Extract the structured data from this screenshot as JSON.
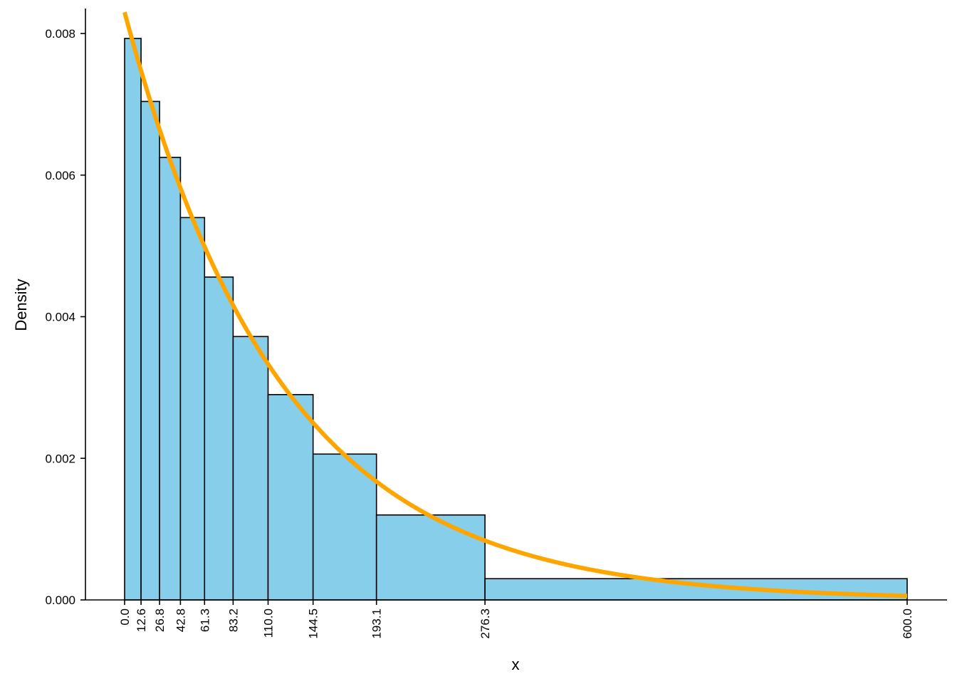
{
  "chart_data": {
    "type": "bar",
    "subtype": "histogram-with-density-curve",
    "xlabel": "x",
    "ylabel": "Density",
    "ylim": [
      0,
      0.0083
    ],
    "xlim": [
      0,
      600
    ],
    "grid": false,
    "bin_edges": [
      0.0,
      12.6,
      26.8,
      42.8,
      61.3,
      83.2,
      110.0,
      144.5,
      193.1,
      276.3,
      600.0
    ],
    "x_tick_labels": [
      "0.0",
      "12.6",
      "26.8",
      "42.8",
      "61.3",
      "83.2",
      "110.0",
      "144.5",
      "193.1",
      "276.3",
      "600.0"
    ],
    "y_ticks": [
      0,
      0.002,
      0.004,
      0.006,
      0.008
    ],
    "y_tick_labels": [
      "0.000",
      "0.002",
      "0.004",
      "0.006",
      "0.008"
    ],
    "values": [
      0.00793,
      0.00704,
      0.00625,
      0.0054,
      0.00456,
      0.00372,
      0.0029,
      0.00206,
      0.0012,
      0.0003
    ],
    "curve": {
      "type": "exponential-density",
      "rate": 0.0083
    },
    "colors": {
      "bar_fill": "#87CEEB",
      "bar_stroke": "#000000",
      "curve": "#FFA500"
    }
  }
}
